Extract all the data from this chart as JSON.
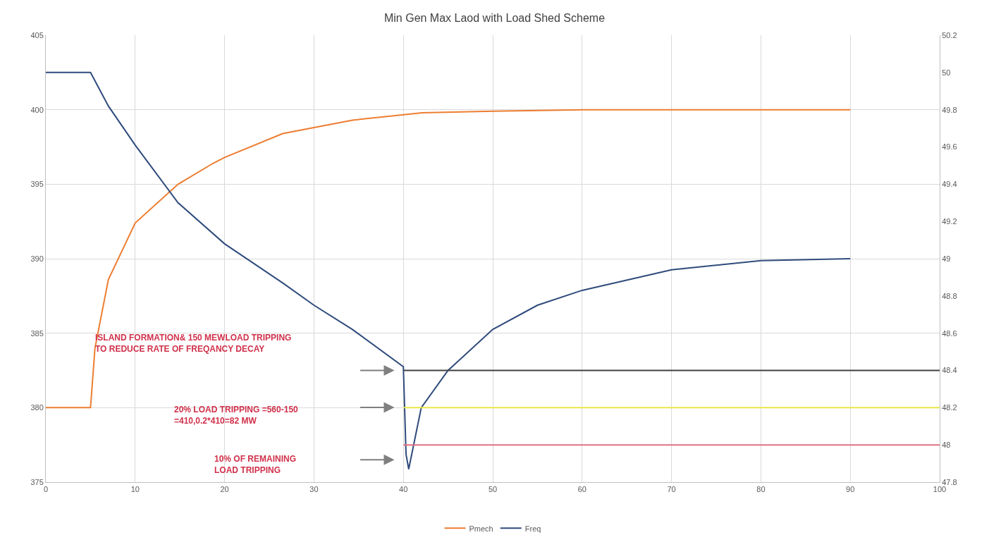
{
  "chart_data": {
    "type": "line",
    "title": "Min Gen Max Laod with Load Shed Scheme",
    "xlim": [
      0,
      100
    ],
    "xticks": [
      0,
      10,
      20,
      30,
      40,
      50,
      60,
      70,
      80,
      90,
      100
    ],
    "ylim": [
      375,
      405
    ],
    "yticks": [
      375,
      380,
      385,
      390,
      395,
      400,
      405
    ],
    "y2lim": [
      47.8,
      50.2
    ],
    "y2ticks": [
      47.8,
      48,
      48.2,
      48.4,
      48.6,
      48.8,
      49,
      49.2,
      49.4,
      49.6,
      49.8,
      50,
      50.2
    ],
    "grid": true,
    "legend": "bottom",
    "marker": "none",
    "line_style": "solid",
    "series": [
      {
        "name": "Pmech",
        "color": "#ed7d31",
        "x": [
          0,
          5,
          5.5,
          7,
          10,
          14.8,
          18.7,
          20,
          26.5,
          34.3,
          42.1,
          50,
          60,
          70,
          80,
          90
        ],
        "values": [
          380,
          380,
          384,
          388.6,
          392.4,
          395,
          396.4,
          396.8,
          398.4,
          399.3,
          399.8,
          399.9,
          400,
          400,
          400,
          400
        ]
      },
      {
        "name": "Freq",
        "color": "#2f4b7c",
        "axis": "y2",
        "x": [
          0,
          5,
          7,
          10,
          14.8,
          20,
          26.5,
          30,
          34.3,
          40,
          40.3,
          40.6,
          42,
          45,
          50,
          55,
          60,
          70,
          80,
          90
        ],
        "values": [
          50,
          50,
          49.82,
          49.61,
          49.3,
          49.08,
          48.87,
          48.75,
          48.62,
          48.42,
          47.95,
          47.87,
          48.2,
          48.4,
          48.62,
          48.75,
          48.83,
          48.94,
          48.99,
          49
        ]
      },
      {
        "color": "#404040",
        "axis": "y2",
        "x": [
          40,
          100
        ],
        "values": [
          48.4,
          48.4
        ]
      },
      {
        "color": "#e8e84a",
        "axis": "y2",
        "x": [
          40,
          100
        ],
        "values": [
          48.2,
          48.2
        ]
      },
      {
        "color": "#e07080",
        "axis": "y2",
        "x": [
          40,
          100
        ],
        "values": [
          48,
          48
        ]
      }
    ],
    "annotations": [
      "ISLAND FORMATION& 150 MEWLOAD TRIPPING\nTO REDUCE RATE OF FREQANCY DECAY",
      "20% LOAD TRIPPING =560-150\n=410,0.2*410=82 MW",
      "10% OF REMAINING\nLOAD TRIPPING"
    ]
  }
}
